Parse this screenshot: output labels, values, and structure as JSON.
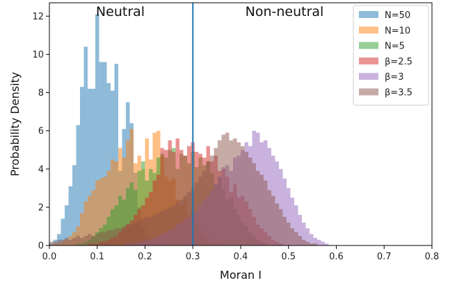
{
  "chart_data": {
    "type": "histogram",
    "xlabel": "Moran I",
    "ylabel": "Probability Density",
    "xlim": [
      0.0,
      0.8
    ],
    "ylim": [
      0,
      12.7
    ],
    "xticks": [
      "0.0",
      "0.1",
      "0.2",
      "0.3",
      "0.4",
      "0.5",
      "0.6",
      "0.7",
      "0.8"
    ],
    "yticks": [
      "0",
      "2",
      "4",
      "6",
      "8",
      "10",
      "12"
    ],
    "grid": false,
    "legend_position": "top-right",
    "bin_width": 0.008,
    "annotations": {
      "left": "Neutral",
      "right": "Non-neutral",
      "divider_x": 0.3
    },
    "series": [
      {
        "name": "N=50",
        "color": "#1f77b4",
        "x_start": 0.0,
        "values": [
          0.1,
          0.3,
          0.6,
          1.4,
          2.1,
          3.1,
          4.2,
          6.3,
          8.3,
          10.4,
          8.2,
          8.2,
          12.1,
          9.6,
          9.6,
          8.5,
          8.1,
          9.5,
          3.9,
          6.1,
          7.5,
          6.4,
          3.8,
          2.0,
          1.0,
          0.5,
          0.3,
          0.2,
          0.1,
          0.1
        ]
      },
      {
        "name": "N=10",
        "color": "#ff7f0e",
        "x_start": 0.008,
        "values": [
          0.1,
          0.1,
          0.2,
          0.3,
          0.5,
          0.7,
          1.0,
          1.7,
          2.3,
          2.6,
          2.9,
          3.4,
          3.5,
          3.6,
          3.9,
          4.5,
          4.4,
          5.1,
          4.6,
          5.5,
          6.1,
          4.3,
          4.7,
          4.0,
          5.6,
          4.5,
          5.9,
          6.0,
          4.7,
          3.6,
          3.4,
          3.5,
          2.4,
          2.1,
          2.4,
          1.6,
          1.9,
          1.1,
          0.8,
          0.5,
          0.4,
          0.2,
          0.1,
          0.1
        ]
      },
      {
        "name": "N=5",
        "color": "#2ca02c",
        "x_start": 0.056,
        "values": [
          0.1,
          0.1,
          0.2,
          0.3,
          0.5,
          0.7,
          0.9,
          1.1,
          1.5,
          1.9,
          2.1,
          2.6,
          2.4,
          3.0,
          3.3,
          2.9,
          3.9,
          4.4,
          3.4,
          4.0,
          3.8,
          4.6,
          4.8,
          4.6,
          5.0,
          5.1,
          4.0,
          4.8,
          4.7,
          4.3,
          4.9,
          4.1,
          4.6,
          4.2,
          4.4,
          3.8,
          3.2,
          3.6,
          2.9,
          2.4,
          2.5,
          1.9,
          1.6,
          1.2,
          1.0,
          0.7,
          0.5,
          0.3,
          0.2,
          0.1
        ]
      },
      {
        "name": "β=2.5",
        "color": "#d62728",
        "x_start": 0.08,
        "values": [
          0.1,
          0.1,
          0.1,
          0.2,
          0.2,
          0.3,
          0.4,
          0.5,
          0.7,
          0.9,
          1.1,
          1.3,
          1.6,
          1.9,
          2.1,
          2.5,
          2.8,
          3.4,
          3.7,
          5.1,
          5.0,
          5.5,
          4.9,
          5.6,
          5.0,
          4.7,
          5.2,
          5.4,
          4.9,
          4.8,
          4.6,
          5.2,
          4.4,
          4.7,
          3.9,
          4.0,
          3.6,
          2.8,
          3.2,
          2.5,
          2.6,
          2.3,
          1.9,
          1.5,
          1.1,
          0.9,
          0.7,
          0.5,
          0.3,
          0.2,
          0.1
        ]
      },
      {
        "name": "β=3",
        "color": "#9467bd",
        "x_start": 0.16,
        "values": [
          0.1,
          0.1,
          0.1,
          0.2,
          0.2,
          0.3,
          0.3,
          0.4,
          0.5,
          0.6,
          0.7,
          0.8,
          0.9,
          1.1,
          1.2,
          1.4,
          1.5,
          1.7,
          1.8,
          2.1,
          2.4,
          2.6,
          2.9,
          3.2,
          3.6,
          4.1,
          4.2,
          3.9,
          4.6,
          4.7,
          5.0,
          5.4,
          5.2,
          6.0,
          5.9,
          5.4,
          5.5,
          5.1,
          4.7,
          4.4,
          4.0,
          3.5,
          3.0,
          2.5,
          2.1,
          1.6,
          1.2,
          0.9,
          0.6,
          0.4,
          0.3,
          0.2,
          0.1
        ]
      },
      {
        "name": "β=3.5",
        "color": "#8c564b",
        "x_start": 0.0,
        "values": [
          0.2,
          0.2,
          0.3,
          0.3,
          0.4,
          0.3,
          0.4,
          0.5,
          0.4,
          0.5,
          0.6,
          0.5,
          0.6,
          0.7,
          0.7,
          0.8,
          0.8,
          0.9,
          0.9,
          1.0,
          1.1,
          1.1,
          1.2,
          1.3,
          1.4,
          1.5,
          1.5,
          1.6,
          1.7,
          1.8,
          1.9,
          2.0,
          2.1,
          2.3,
          2.4,
          2.6,
          2.8,
          3.0,
          3.3,
          3.6,
          3.9,
          4.4,
          4.7,
          5.1,
          5.5,
          5.8,
          5.9,
          5.5,
          5.6,
          5.4,
          5.2,
          4.9,
          4.6,
          4.3,
          3.9,
          3.7,
          3.4,
          2.9,
          2.6,
          2.2,
          1.9,
          1.5,
          1.2,
          0.9,
          0.7,
          0.5,
          0.3,
          0.2,
          0.1,
          0.1
        ]
      }
    ]
  }
}
